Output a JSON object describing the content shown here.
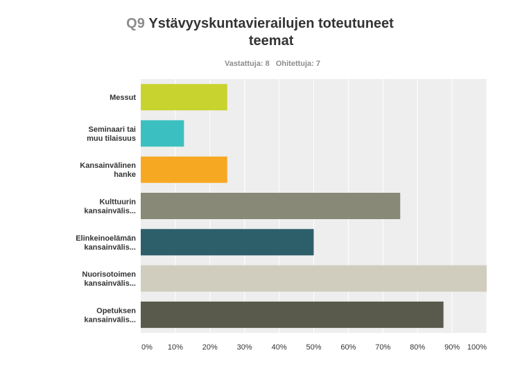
{
  "header": {
    "question_number": "Q9",
    "question_text_line1": "Ystävyyskuntavierailujen toteutuneet",
    "question_text_line2": "teemat",
    "answered": "Vastattuja: 8",
    "skipped": "Ohitettuja: 7"
  },
  "chart_data": {
    "type": "bar",
    "orientation": "horizontal",
    "categories": [
      [
        "Messut"
      ],
      [
        "Seminaari tai",
        "muu tilaisuus"
      ],
      [
        "Kansainvälinen",
        "hanke"
      ],
      [
        "Kulttuurin",
        "kansainvälis..."
      ],
      [
        "Elinkeinoelämän",
        "kansainvälis..."
      ],
      [
        "Nuorisotoimen",
        "kansainvälis..."
      ],
      [
        "Opetuksen",
        "kansainvälis..."
      ]
    ],
    "values": [
      25,
      12.5,
      25,
      75,
      50,
      100,
      87.5
    ],
    "colors": [
      "#c9d330",
      "#3bbfc0",
      "#f7a823",
      "#898978",
      "#2d5f6b",
      "#d0cdbf",
      "#5a5a4c"
    ],
    "xlim": [
      0,
      100
    ],
    "ticks": [
      "0%",
      "10%",
      "20%",
      "30%",
      "40%",
      "50%",
      "60%",
      "70%",
      "80%",
      "90%",
      "100%"
    ],
    "grid": true,
    "background": "#eeeeee",
    "grid_color": "#ffffff"
  }
}
